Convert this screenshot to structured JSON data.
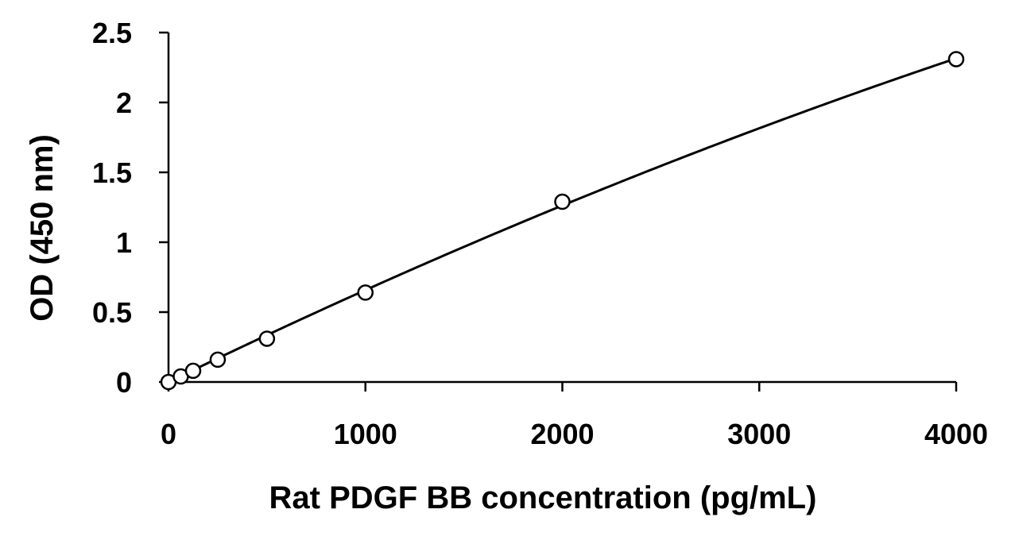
{
  "chart_data": {
    "type": "scatter",
    "title": "",
    "xlabel": "Rat PDGF BB concentration (pg/mL)",
    "ylabel": "OD (450 nm)",
    "xlim": [
      0,
      4000
    ],
    "ylim": [
      0,
      2.5
    ],
    "x_ticks": [
      "0",
      "1000",
      "2000",
      "3000",
      "4000"
    ],
    "y_ticks": [
      "0",
      "0.5",
      "1",
      "1.5",
      "2",
      "2.5"
    ],
    "grid": false,
    "legend": "none",
    "series": [
      {
        "marker": "open-circle",
        "line": "smooth-fit",
        "x": [
          0,
          62.5,
          125,
          250,
          500,
          1000,
          2000,
          4000
        ],
        "y": [
          0.0,
          0.04,
          0.08,
          0.16,
          0.31,
          0.64,
          1.29,
          2.31
        ]
      }
    ],
    "colors": {
      "line": "#000000",
      "marker_fill": "#ffffff",
      "marker_stroke": "#000000"
    }
  }
}
